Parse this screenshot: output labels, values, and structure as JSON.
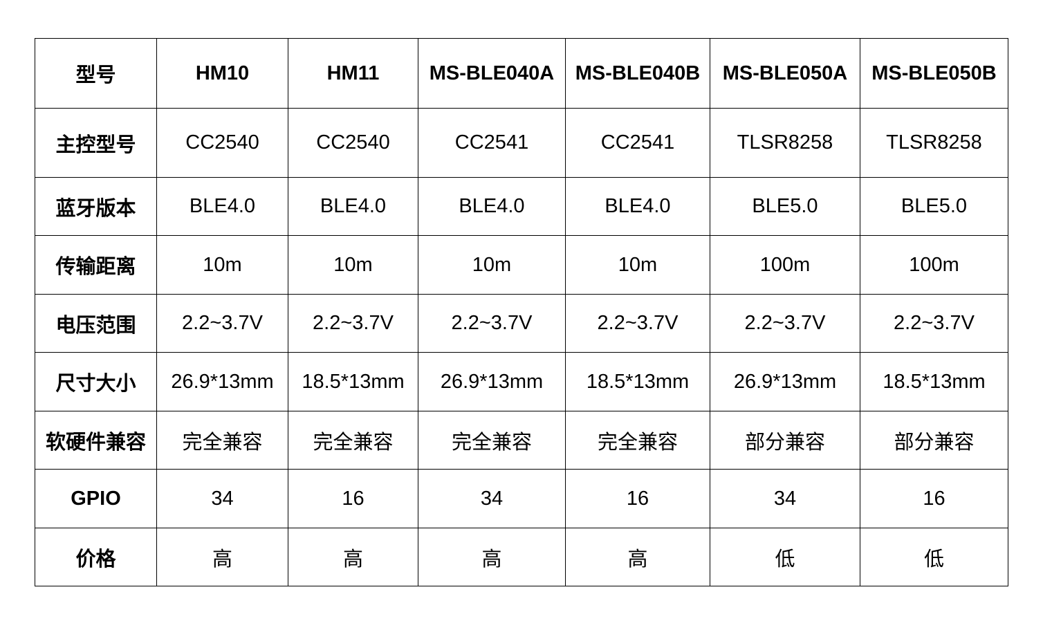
{
  "table": {
    "header": [
      "型号",
      "HM10",
      "HM11",
      "MS-BLE040A",
      "MS-BLE040B",
      "MS-BLE050A",
      "MS-BLE050B"
    ],
    "rows": [
      [
        "主控型号",
        "CC2540",
        "CC2540",
        "CC2541",
        "CC2541",
        "TLSR8258",
        "TLSR8258"
      ],
      [
        "蓝牙版本",
        "BLE4.0",
        "BLE4.0",
        "BLE4.0",
        "BLE4.0",
        "BLE5.0",
        "BLE5.0"
      ],
      [
        "传输距离",
        "10m",
        "10m",
        "10m",
        "10m",
        "100m",
        "100m"
      ],
      [
        "电压范围",
        "2.2~3.7V",
        "2.2~3.7V",
        "2.2~3.7V",
        "2.2~3.7V",
        "2.2~3.7V",
        "2.2~3.7V"
      ],
      [
        "尺寸大小",
        "26.9*13mm",
        "18.5*13mm",
        "26.9*13mm",
        "18.5*13mm",
        "26.9*13mm",
        "18.5*13mm"
      ],
      [
        "软硬件兼容",
        "完全兼容",
        "完全兼容",
        "完全兼容",
        "完全兼容",
        "部分兼容",
        "部分兼容"
      ],
      [
        "GPIO",
        "34",
        "16",
        "34",
        "16",
        "34",
        "16"
      ],
      [
        "价格",
        "高",
        "高",
        "高",
        "高",
        "低",
        "低"
      ]
    ]
  }
}
